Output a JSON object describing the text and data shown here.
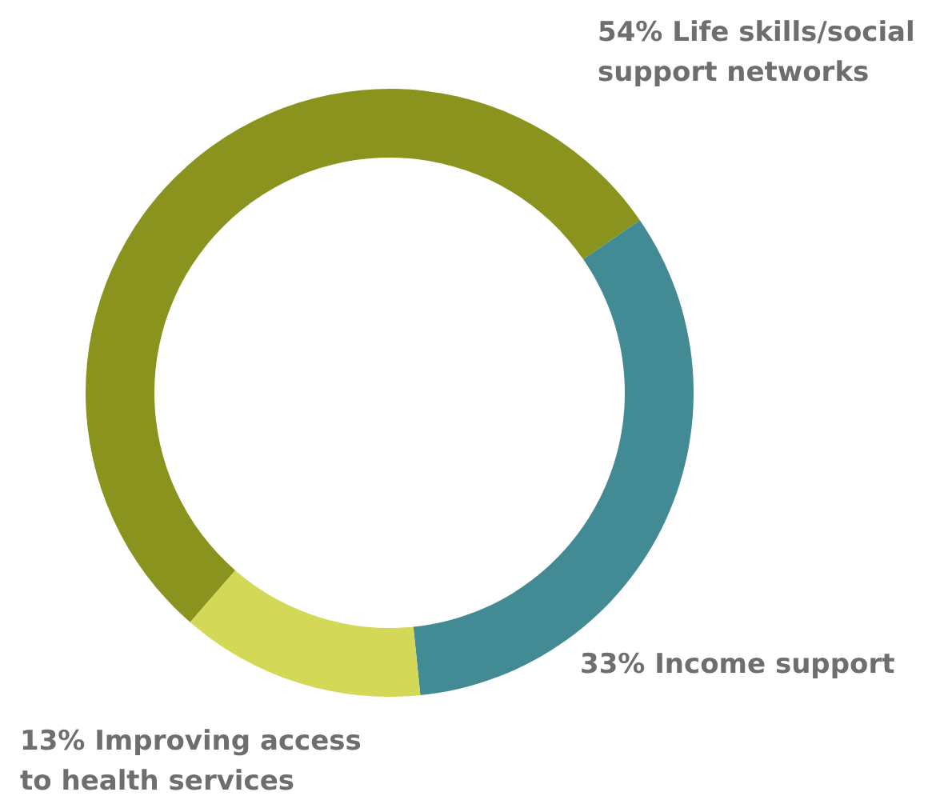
{
  "chart_data": {
    "type": "donut",
    "categories": [
      "Life skills/social support networks",
      "Income support",
      "Improving access to health services"
    ],
    "values": [
      54,
      33,
      13
    ],
    "value_labels": [
      "54%",
      "33%",
      "13%"
    ],
    "colors": [
      "#8a931e",
      "#438b94",
      "#d3d956"
    ]
  }
}
